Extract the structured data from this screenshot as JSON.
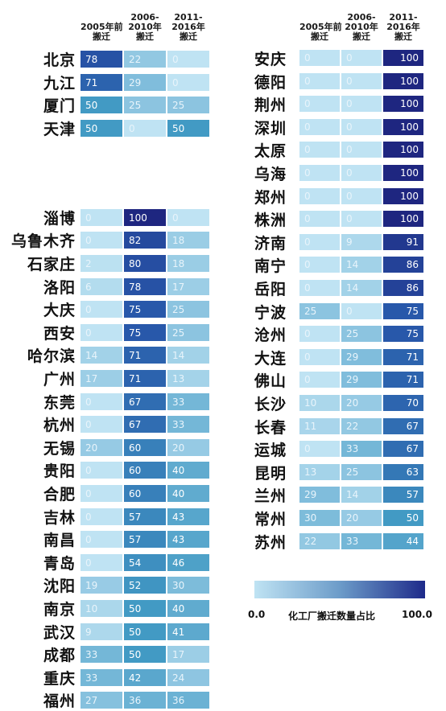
{
  "chart_data": {
    "type": "heatmap",
    "columns": [
      "2005年前\n搬迁",
      "2006-\n2010年\n搬迁",
      "2011-\n2016年\n搬迁"
    ],
    "legend": {
      "min": "0.0",
      "max": "100.0",
      "label": "化工厂搬迁数量占比"
    },
    "left_groups": [
      [
        {
          "city": "北京",
          "values": [
            78,
            22,
            0
          ]
        },
        {
          "city": "九江",
          "values": [
            71,
            29,
            0
          ]
        },
        {
          "city": "厦门",
          "values": [
            50,
            25,
            25
          ]
        },
        {
          "city": "天津",
          "values": [
            50,
            0,
            50
          ]
        }
      ],
      [
        {
          "city": "淄博",
          "values": [
            0,
            100,
            0
          ]
        },
        {
          "city": "乌鲁木齐",
          "values": [
            0,
            82,
            18
          ]
        },
        {
          "city": "石家庄",
          "values": [
            2,
            80,
            18
          ]
        },
        {
          "city": "洛阳",
          "values": [
            6,
            78,
            17
          ]
        },
        {
          "city": "大庆",
          "values": [
            0,
            75,
            25
          ]
        },
        {
          "city": "西安",
          "values": [
            0,
            75,
            25
          ]
        },
        {
          "city": "哈尔滨",
          "values": [
            14,
            71,
            14
          ]
        },
        {
          "city": "广州",
          "values": [
            17,
            71,
            13
          ]
        },
        {
          "city": "东莞",
          "values": [
            0,
            67,
            33
          ]
        },
        {
          "city": "杭州",
          "values": [
            0,
            67,
            33
          ]
        },
        {
          "city": "无锡",
          "values": [
            20,
            60,
            20
          ]
        },
        {
          "city": "贵阳",
          "values": [
            0,
            60,
            40
          ]
        },
        {
          "city": "合肥",
          "values": [
            0,
            60,
            40
          ]
        },
        {
          "city": "吉林",
          "values": [
            0,
            57,
            43
          ]
        },
        {
          "city": "南昌",
          "values": [
            0,
            57,
            43
          ]
        },
        {
          "city": "青岛",
          "values": [
            0,
            54,
            46
          ]
        },
        {
          "city": "沈阳",
          "values": [
            19,
            52,
            30
          ]
        },
        {
          "city": "南京",
          "values": [
            10,
            50,
            40
          ]
        },
        {
          "city": "武汉",
          "values": [
            9,
            50,
            41
          ]
        },
        {
          "city": "成都",
          "values": [
            33,
            50,
            17
          ]
        },
        {
          "city": "重庆",
          "values": [
            33,
            42,
            24
          ]
        },
        {
          "city": "福州",
          "values": [
            27,
            36,
            36
          ]
        }
      ]
    ],
    "right_rows": [
      {
        "city": "安庆",
        "values": [
          0,
          0,
          100
        ]
      },
      {
        "city": "德阳",
        "values": [
          0,
          0,
          100
        ]
      },
      {
        "city": "荆州",
        "values": [
          0,
          0,
          100
        ]
      },
      {
        "city": "深圳",
        "values": [
          0,
          0,
          100
        ]
      },
      {
        "city": "太原",
        "values": [
          0,
          0,
          100
        ]
      },
      {
        "city": "乌海",
        "values": [
          0,
          0,
          100
        ]
      },
      {
        "city": "郑州",
        "values": [
          0,
          0,
          100
        ]
      },
      {
        "city": "株洲",
        "values": [
          0,
          0,
          100
        ]
      },
      {
        "city": "济南",
        "values": [
          0,
          9,
          91
        ]
      },
      {
        "city": "南宁",
        "values": [
          0,
          14,
          86
        ]
      },
      {
        "city": "岳阳",
        "values": [
          0,
          14,
          86
        ]
      },
      {
        "city": "宁波",
        "values": [
          25,
          0,
          75
        ]
      },
      {
        "city": "沧州",
        "values": [
          0,
          25,
          75
        ]
      },
      {
        "city": "大连",
        "values": [
          0,
          29,
          71
        ]
      },
      {
        "city": "佛山",
        "values": [
          0,
          29,
          71
        ]
      },
      {
        "city": "长沙",
        "values": [
          10,
          20,
          70
        ]
      },
      {
        "city": "长春",
        "values": [
          11,
          22,
          67
        ]
      },
      {
        "city": "运城",
        "values": [
          0,
          33,
          67
        ]
      },
      {
        "city": "昆明",
        "values": [
          13,
          25,
          63
        ]
      },
      {
        "city": "兰州",
        "values": [
          29,
          14,
          57
        ]
      },
      {
        "city": "常州",
        "values": [
          30,
          20,
          50
        ]
      },
      {
        "city": "苏州",
        "values": [
          22,
          33,
          44
        ]
      }
    ]
  }
}
